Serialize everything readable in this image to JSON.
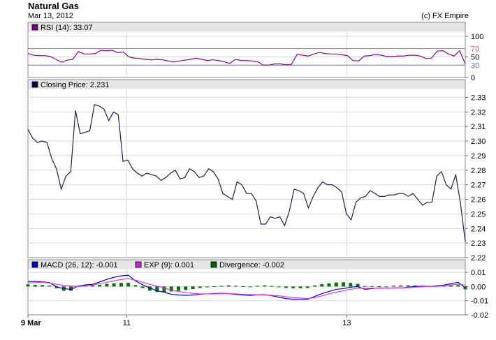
{
  "header": {
    "title": "Natural Gas",
    "date": "Mar 13, 2012",
    "credit": "(c) FX Empire"
  },
  "chart_data": [
    {
      "type": "line",
      "panel": "rsi",
      "legend": [
        {
          "swatch": "#800080",
          "label": "RSI (14): 33.07"
        }
      ],
      "color": "#990099",
      "ylim": [
        0,
        110
      ],
      "ticks": [
        "100",
        "50",
        "0"
      ],
      "guide_lines": [
        {
          "value": 70,
          "label": "70",
          "color": "#dd6666"
        },
        {
          "value": 30,
          "label": "30",
          "color": "#6666cc"
        }
      ],
      "values": [
        58,
        54,
        53,
        53,
        51,
        44,
        37,
        42,
        44,
        63,
        57,
        57,
        58,
        66,
        65,
        66,
        60,
        62,
        50,
        47,
        46,
        44,
        43,
        44,
        43,
        40,
        38,
        40,
        42,
        44,
        47,
        44,
        41,
        43,
        41,
        38,
        34,
        44,
        41,
        41,
        40,
        38,
        30,
        30,
        33,
        33,
        31,
        32,
        56,
        54,
        52,
        57,
        61,
        58,
        57,
        57,
        55,
        53,
        41,
        40,
        52,
        53,
        56,
        54,
        51,
        51,
        52,
        52,
        54,
        54,
        52,
        46,
        47,
        64,
        65,
        57,
        52,
        65,
        33
      ]
    },
    {
      "type": "line",
      "panel": "price",
      "legend": [
        {
          "swatch": "#000044",
          "label": "Closing Price: 2.231"
        }
      ],
      "color": "#1f1f4f",
      "ylim": [
        2.22,
        2.335
      ],
      "ticks": [
        "2.33",
        "2.32",
        "2.31",
        "2.30",
        "2.29",
        "2.28",
        "2.27",
        "2.26",
        "2.25",
        "2.24",
        "2.23",
        "2.22"
      ],
      "values": [
        2.308,
        2.302,
        2.299,
        2.3,
        2.299,
        2.288,
        2.281,
        2.267,
        2.276,
        2.279,
        2.321,
        2.305,
        2.306,
        2.307,
        2.325,
        2.324,
        2.322,
        2.314,
        2.32,
        2.318,
        2.286,
        2.287,
        2.281,
        2.278,
        2.276,
        2.278,
        2.277,
        2.276,
        2.273,
        2.275,
        2.278,
        2.28,
        2.274,
        2.275,
        2.281,
        2.279,
        2.275,
        2.276,
        2.281,
        2.279,
        2.274,
        2.264,
        2.262,
        2.26,
        2.272,
        2.27,
        2.264,
        2.264,
        2.259,
        2.243,
        2.243,
        2.248,
        2.247,
        2.248,
        2.242,
        2.252,
        2.267,
        2.266,
        2.264,
        2.254,
        2.262,
        2.268,
        2.272,
        2.27,
        2.27,
        2.268,
        2.265,
        2.25,
        2.246,
        2.258,
        2.261,
        2.262,
        2.266,
        2.264,
        2.262,
        2.262,
        2.263,
        2.263,
        2.264,
        2.264,
        2.262,
        2.264,
        2.26,
        2.256,
        2.258,
        2.258,
        2.276,
        2.279,
        2.27,
        2.267,
        2.277,
        2.257,
        2.231
      ]
    },
    {
      "type": "line",
      "panel": "macd",
      "legend": [
        {
          "swatch": "#0000cc",
          "label": "MACD (26, 12): -0.001"
        },
        {
          "swatch": "#cc22cc",
          "label": "EXP (9): 0.001"
        },
        {
          "swatch": "#006600",
          "label": "Divergence: -0.002"
        }
      ],
      "ylim": [
        -0.02,
        0.012
      ],
      "ticks": [
        "0.01",
        "0.00",
        "-0.01",
        "-0.02"
      ],
      "series": [
        {
          "color": "#0000dd",
          "values": [
            0.0035,
            0.0036,
            0.0033,
            0.0028,
            -0.0002,
            -0.0015,
            -0.002,
            0.0003,
            0.0012,
            0.0015,
            0.0032,
            0.005,
            0.0065,
            0.0075,
            0.008,
            0.004,
            0.0012,
            -0.001,
            -0.003,
            -0.004,
            -0.0055,
            -0.006,
            -0.0062,
            -0.006,
            -0.0055,
            -0.0052,
            -0.005,
            -0.0048,
            -0.005,
            -0.0056,
            -0.006,
            -0.0063,
            -0.0058,
            -0.0058,
            -0.0065,
            -0.0075,
            -0.0085,
            -0.009,
            -0.0092,
            -0.009,
            -0.007,
            -0.005,
            -0.0035,
            -0.002,
            -0.0015,
            -0.0005,
            0.0,
            -0.002,
            -0.0015,
            -0.001,
            -0.0012,
            -0.001,
            -0.001,
            -0.0005,
            0.0,
            0.0002,
            0.0,
            0.0005,
            0.001,
            0.002,
            0.003,
            -0.001
          ]
        },
        {
          "color": "#ee33ee",
          "values": [
            0.0025,
            0.0028,
            0.003,
            0.0025,
            0.0015,
            0.0008,
            0.0003,
            0.0,
            0.0005,
            0.001,
            0.002,
            0.003,
            0.004,
            0.005,
            0.0055,
            0.0045,
            0.003,
            0.0015,
            0.0003,
            -0.001,
            -0.0025,
            -0.0035,
            -0.0042,
            -0.0048,
            -0.0052,
            -0.0052,
            -0.0052,
            -0.005,
            -0.005,
            -0.0052,
            -0.0055,
            -0.0057,
            -0.0058,
            -0.006,
            -0.0062,
            -0.0065,
            -0.0072,
            -0.0078,
            -0.0082,
            -0.0085,
            -0.0078,
            -0.0066,
            -0.0052,
            -0.004,
            -0.003,
            -0.002,
            -0.0012,
            -0.0012,
            -0.0012,
            -0.0012,
            -0.0012,
            -0.0011,
            -0.001,
            -0.0008,
            -0.0005,
            -0.0002,
            0.0,
            0.0002,
            0.0005,
            0.0012,
            0.0016,
            0.001
          ]
        },
        {
          "type": "bar",
          "color": "#007700",
          "values": [
            0.0015,
            0.0012,
            0.001,
            0.0006,
            -0.0012,
            -0.003,
            -0.003,
            0.0004,
            0.0008,
            0.0008,
            0.0012,
            0.0018,
            0.0022,
            0.0025,
            0.0026,
            0.001,
            -0.001,
            -0.003,
            -0.0038,
            -0.004,
            -0.0035,
            -0.003,
            -0.0025,
            -0.0018,
            -0.001,
            -0.0004,
            0.0002,
            0.0005,
            0.0008,
            0.0005,
            0.0002,
            0.0,
            0.0005,
            0.0008,
            0.0004,
            -0.0005,
            -0.001,
            -0.0012,
            -0.0012,
            -0.001,
            0.0008,
            0.0016,
            0.0022,
            0.0028,
            0.003,
            0.0025,
            0.0018,
            0.0004,
            0.0003,
            0.0002,
            0.0,
            0.0006,
            0.0008,
            0.0008,
            0.0007,
            0.0005,
            0.0004,
            0.0004,
            0.0005,
            0.0008,
            0.001,
            -0.002
          ]
        }
      ]
    }
  ],
  "x_axis": {
    "ticks": [
      {
        "label": "9 Mar",
        "bold": true,
        "pos": 0
      },
      {
        "label": "11",
        "bold": false,
        "pos": 0.226
      },
      {
        "label": "13",
        "bold": false,
        "pos": 0.729
      }
    ]
  }
}
